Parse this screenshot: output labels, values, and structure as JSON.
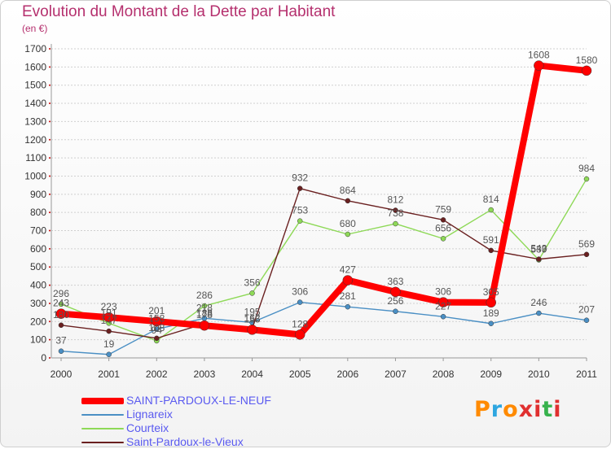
{
  "title": "Evolution du Montant de la Dette par Habitant",
  "subtitle": "(en €)",
  "brand": "Proxiti",
  "brand_colors": [
    "#ff8a00",
    "#2ea6e0",
    "#ff8a00",
    "#e03030",
    "#e03030",
    "#37b24d",
    "#e03030"
  ],
  "chart_data": {
    "type": "line",
    "title": "Evolution du Montant de la Dette par Habitant",
    "ylabel": "(en €)",
    "xlabel": "",
    "x": [
      "2000",
      "2001",
      "2002",
      "2003",
      "2004",
      "2005",
      "2006",
      "2007",
      "2008",
      "2009",
      "2010",
      "2011"
    ],
    "ylim": [
      0,
      1700
    ],
    "yticks": [
      0,
      100,
      200,
      300,
      400,
      500,
      600,
      700,
      800,
      900,
      1000,
      1100,
      1200,
      1300,
      1400,
      1500,
      1600,
      1700
    ],
    "grid": "horizontal",
    "series": [
      {
        "name": "Lignareix",
        "color": "#4a8fc4",
        "values": [
          37,
          19,
          158,
          218,
          195,
          306,
          281,
          256,
          227,
          189,
          246,
          207
        ]
      },
      {
        "name": "Courteix",
        "color": "#8ed957",
        "values": [
          296,
          191,
          94,
          286,
          356,
          753,
          680,
          738,
          656,
          814,
          539,
          984
        ]
      },
      {
        "name": "Saint-Pardoux-le-Vieux",
        "color": "#6a2020",
        "values": [
          180,
          147,
          108,
          188,
          162,
          932,
          864,
          812,
          759,
          591,
          543,
          569
        ]
      },
      {
        "name": "SAINT-PARDOUX-LE-NEUF",
        "color": "#ff0000",
        "values": [
          243,
          223,
          201,
          178,
          155,
          128,
          427,
          363,
          306,
          305,
          1608,
          1580
        ]
      }
    ]
  }
}
